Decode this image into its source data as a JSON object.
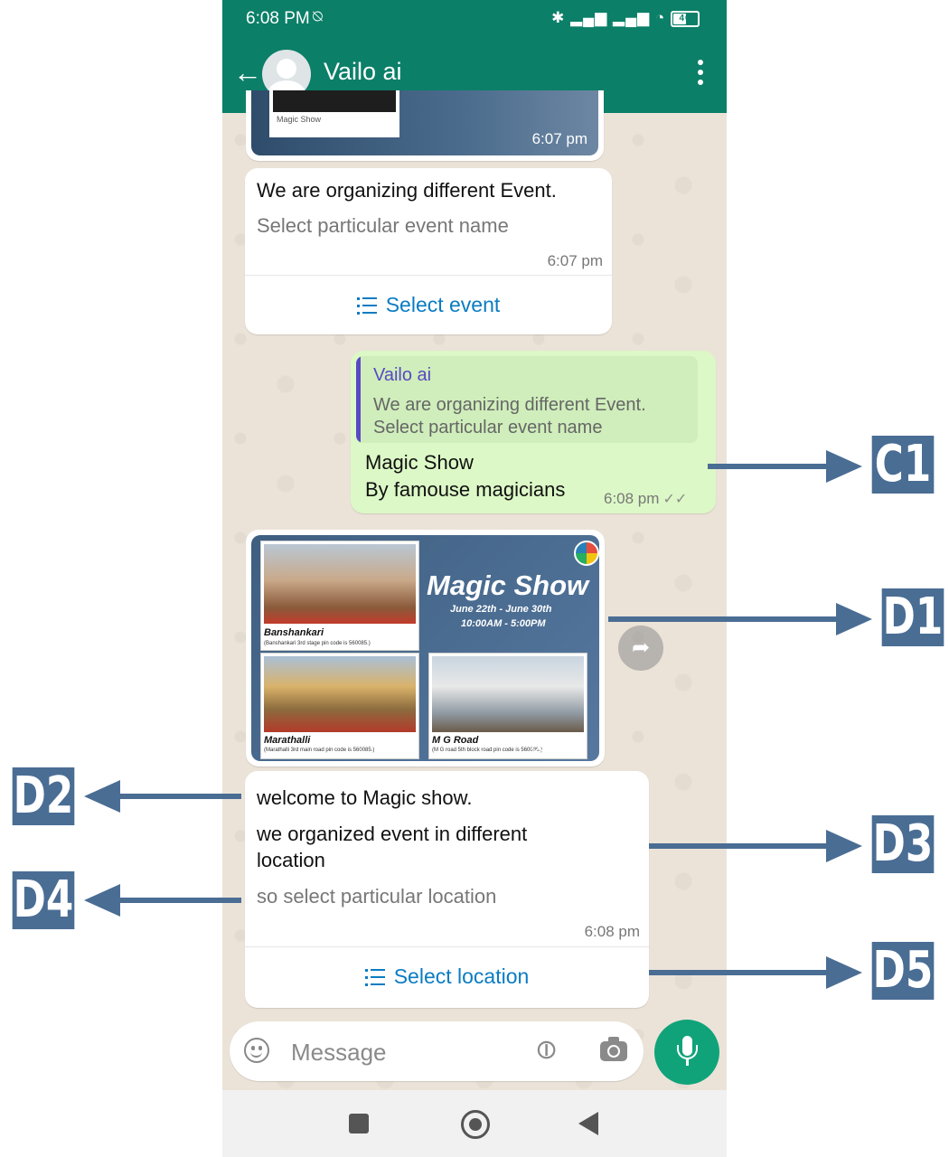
{
  "status_bar": {
    "time": "6:08 PM",
    "battery": "40"
  },
  "header": {
    "contact_name": "Vailo ai"
  },
  "messages": {
    "top_image": {
      "caption": "Magic Show",
      "time": "6:07 pm"
    },
    "event_list": {
      "text": "We are organizing different Event.",
      "subtext": "Select particular event name",
      "time": "6:07 pm",
      "button_label": "Select event"
    },
    "reply": {
      "quote_name": "Vailo ai",
      "quote_line1": "We are organizing different Event.",
      "quote_line2": "Select particular event name",
      "line1": "Magic Show",
      "line2": "By famouse magicians",
      "time": "6:08 pm"
    },
    "poster": {
      "title": "Magic Show",
      "dates": "June 22th - June 30th",
      "hours": "10:00AM - 5:00PM",
      "loc1": "Banshankari",
      "loc1_sub": "(Banshankari 3rd stage pin code is 560085.)",
      "loc2": "Marathalli",
      "loc2_sub": "(Marathalli 3rd main road pin code is 560085.)",
      "loc3": "M G Road",
      "loc3_sub": "(M G road 5th block road pin code is 560085.)",
      "time": "6:08 pm"
    },
    "location_list": {
      "heading": "welcome to Magic show.",
      "line1": "we organized event in different",
      "line2": "location",
      "subtext": "so select particular location",
      "time": "6:08 pm",
      "button_label": "Select  location"
    }
  },
  "input": {
    "placeholder": "Message"
  },
  "annotations": {
    "c1": "C1",
    "d1": "D1",
    "d2": "D2",
    "d3": "D3",
    "d4": "D4",
    "d5": "D5"
  },
  "colors": {
    "header": "#0b7f68",
    "link": "#0b7cc2",
    "outgoing_bubble": "#dcf8c6",
    "annotation": "#4a6d94"
  }
}
